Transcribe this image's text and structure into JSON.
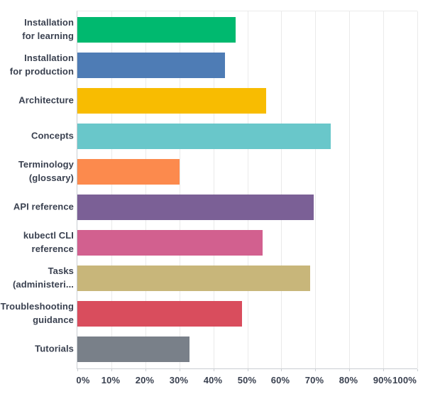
{
  "chart_data": {
    "type": "bar",
    "orientation": "horizontal",
    "title": "",
    "categories": [
      "Installation for learning",
      "Installation for production",
      "Architecture",
      "Concepts",
      "Terminology (glossary)",
      "API reference",
      "kubectl CLI reference",
      "Tasks (administeri...",
      "Troubleshooting guidance",
      "Tutorials"
    ],
    "category_display_lines": [
      [
        "Installation",
        "for learning"
      ],
      [
        "Installation",
        "for production"
      ],
      [
        "Architecture"
      ],
      [
        "Concepts"
      ],
      [
        "Terminology",
        "(glossary)"
      ],
      [
        "API reference"
      ],
      [
        "kubectl CLI",
        "reference"
      ],
      [
        "Tasks",
        "(administeri..."
      ],
      [
        "Troubleshooting",
        "guidance"
      ],
      [
        "Tutorials"
      ]
    ],
    "values": [
      46.5,
      43.5,
      55.5,
      74.5,
      30,
      69.5,
      54.5,
      68.5,
      48.5,
      33
    ],
    "unit": "%",
    "bar_colors": [
      "#00B96F",
      "#4E7CB5",
      "#F8BC01",
      "#69C7CA",
      "#FC8A4D",
      "#7B6096",
      "#D2608F",
      "#C8B67A",
      "#D94D5D",
      "#798089"
    ],
    "x_tick_labels": [
      "0%",
      "10%",
      "20%",
      "30%",
      "40%",
      "50%",
      "60%",
      "70%",
      "80%",
      "90%",
      "100%"
    ],
    "xlim": [
      0,
      100
    ],
    "grid": true,
    "legend": false
  },
  "colors": {
    "background": "#ffffff",
    "gridline": "#eaeaea",
    "axis_line": "#c9cdd2",
    "text": "#3a4150"
  }
}
